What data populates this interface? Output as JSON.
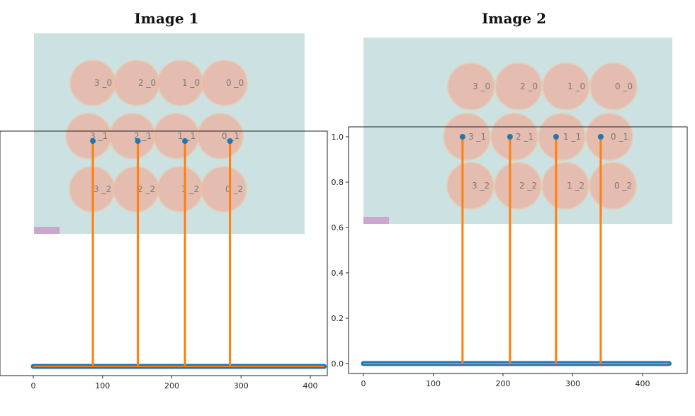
{
  "titles": [
    "Image 1",
    "Image 2"
  ],
  "colors": {
    "markers": "#1f77b4",
    "stems": "#ff7f0e",
    "overlay_bg": "#c9e0e0",
    "overlay_bg2": "#bcd8dc",
    "circle_fill": "#f4a48f",
    "frame": "#222222"
  },
  "chart_data": [
    {
      "type": "scatter",
      "title": "Image 1",
      "xlabel": "",
      "ylabel": "",
      "xlim": [
        -10,
        440
      ],
      "ylim": [
        -0.03,
        1.05
      ],
      "xticks": [
        0,
        100,
        200,
        300,
        400
      ],
      "yticks": [
        0.0,
        0.2,
        0.4,
        0.6,
        0.8,
        1.0
      ],
      "x_range_points": [
        0,
        420
      ],
      "baseline_value": 0,
      "peaks_x": [
        86,
        151,
        219,
        284
      ],
      "peaks_y": [
        1.0,
        1.0,
        1.0,
        1.0
      ],
      "circle_labels": [
        [
          "3_0",
          "2_0",
          "1_0",
          "0_0"
        ],
        [
          "3_1",
          "2_1",
          "1_1",
          "0_1"
        ],
        [
          "3_2",
          "2_2",
          "1_2",
          "0_2"
        ]
      ]
    },
    {
      "type": "scatter",
      "title": "Image 2",
      "xlabel": "",
      "ylabel": "",
      "xlim": [
        -10,
        460
      ],
      "ylim": [
        -0.03,
        1.05
      ],
      "xticks": [
        0,
        100,
        200,
        300,
        400
      ],
      "yticks": [
        0.0,
        0.2,
        0.4,
        0.6,
        0.8,
        1.0
      ],
      "x_range_points": [
        0,
        438
      ],
      "baseline_value": 0,
      "peaks_x": [
        142,
        210,
        276,
        340
      ],
      "peaks_y": [
        1.0,
        1.0,
        1.0,
        1.0
      ],
      "circle_labels": [
        [
          "3_0",
          "2_0",
          "1_0",
          "0_0"
        ],
        [
          "3_1",
          "2_1",
          "1_1",
          "0_1"
        ],
        [
          "3_2",
          "2_2",
          "1_2",
          "0_2"
        ]
      ]
    }
  ]
}
